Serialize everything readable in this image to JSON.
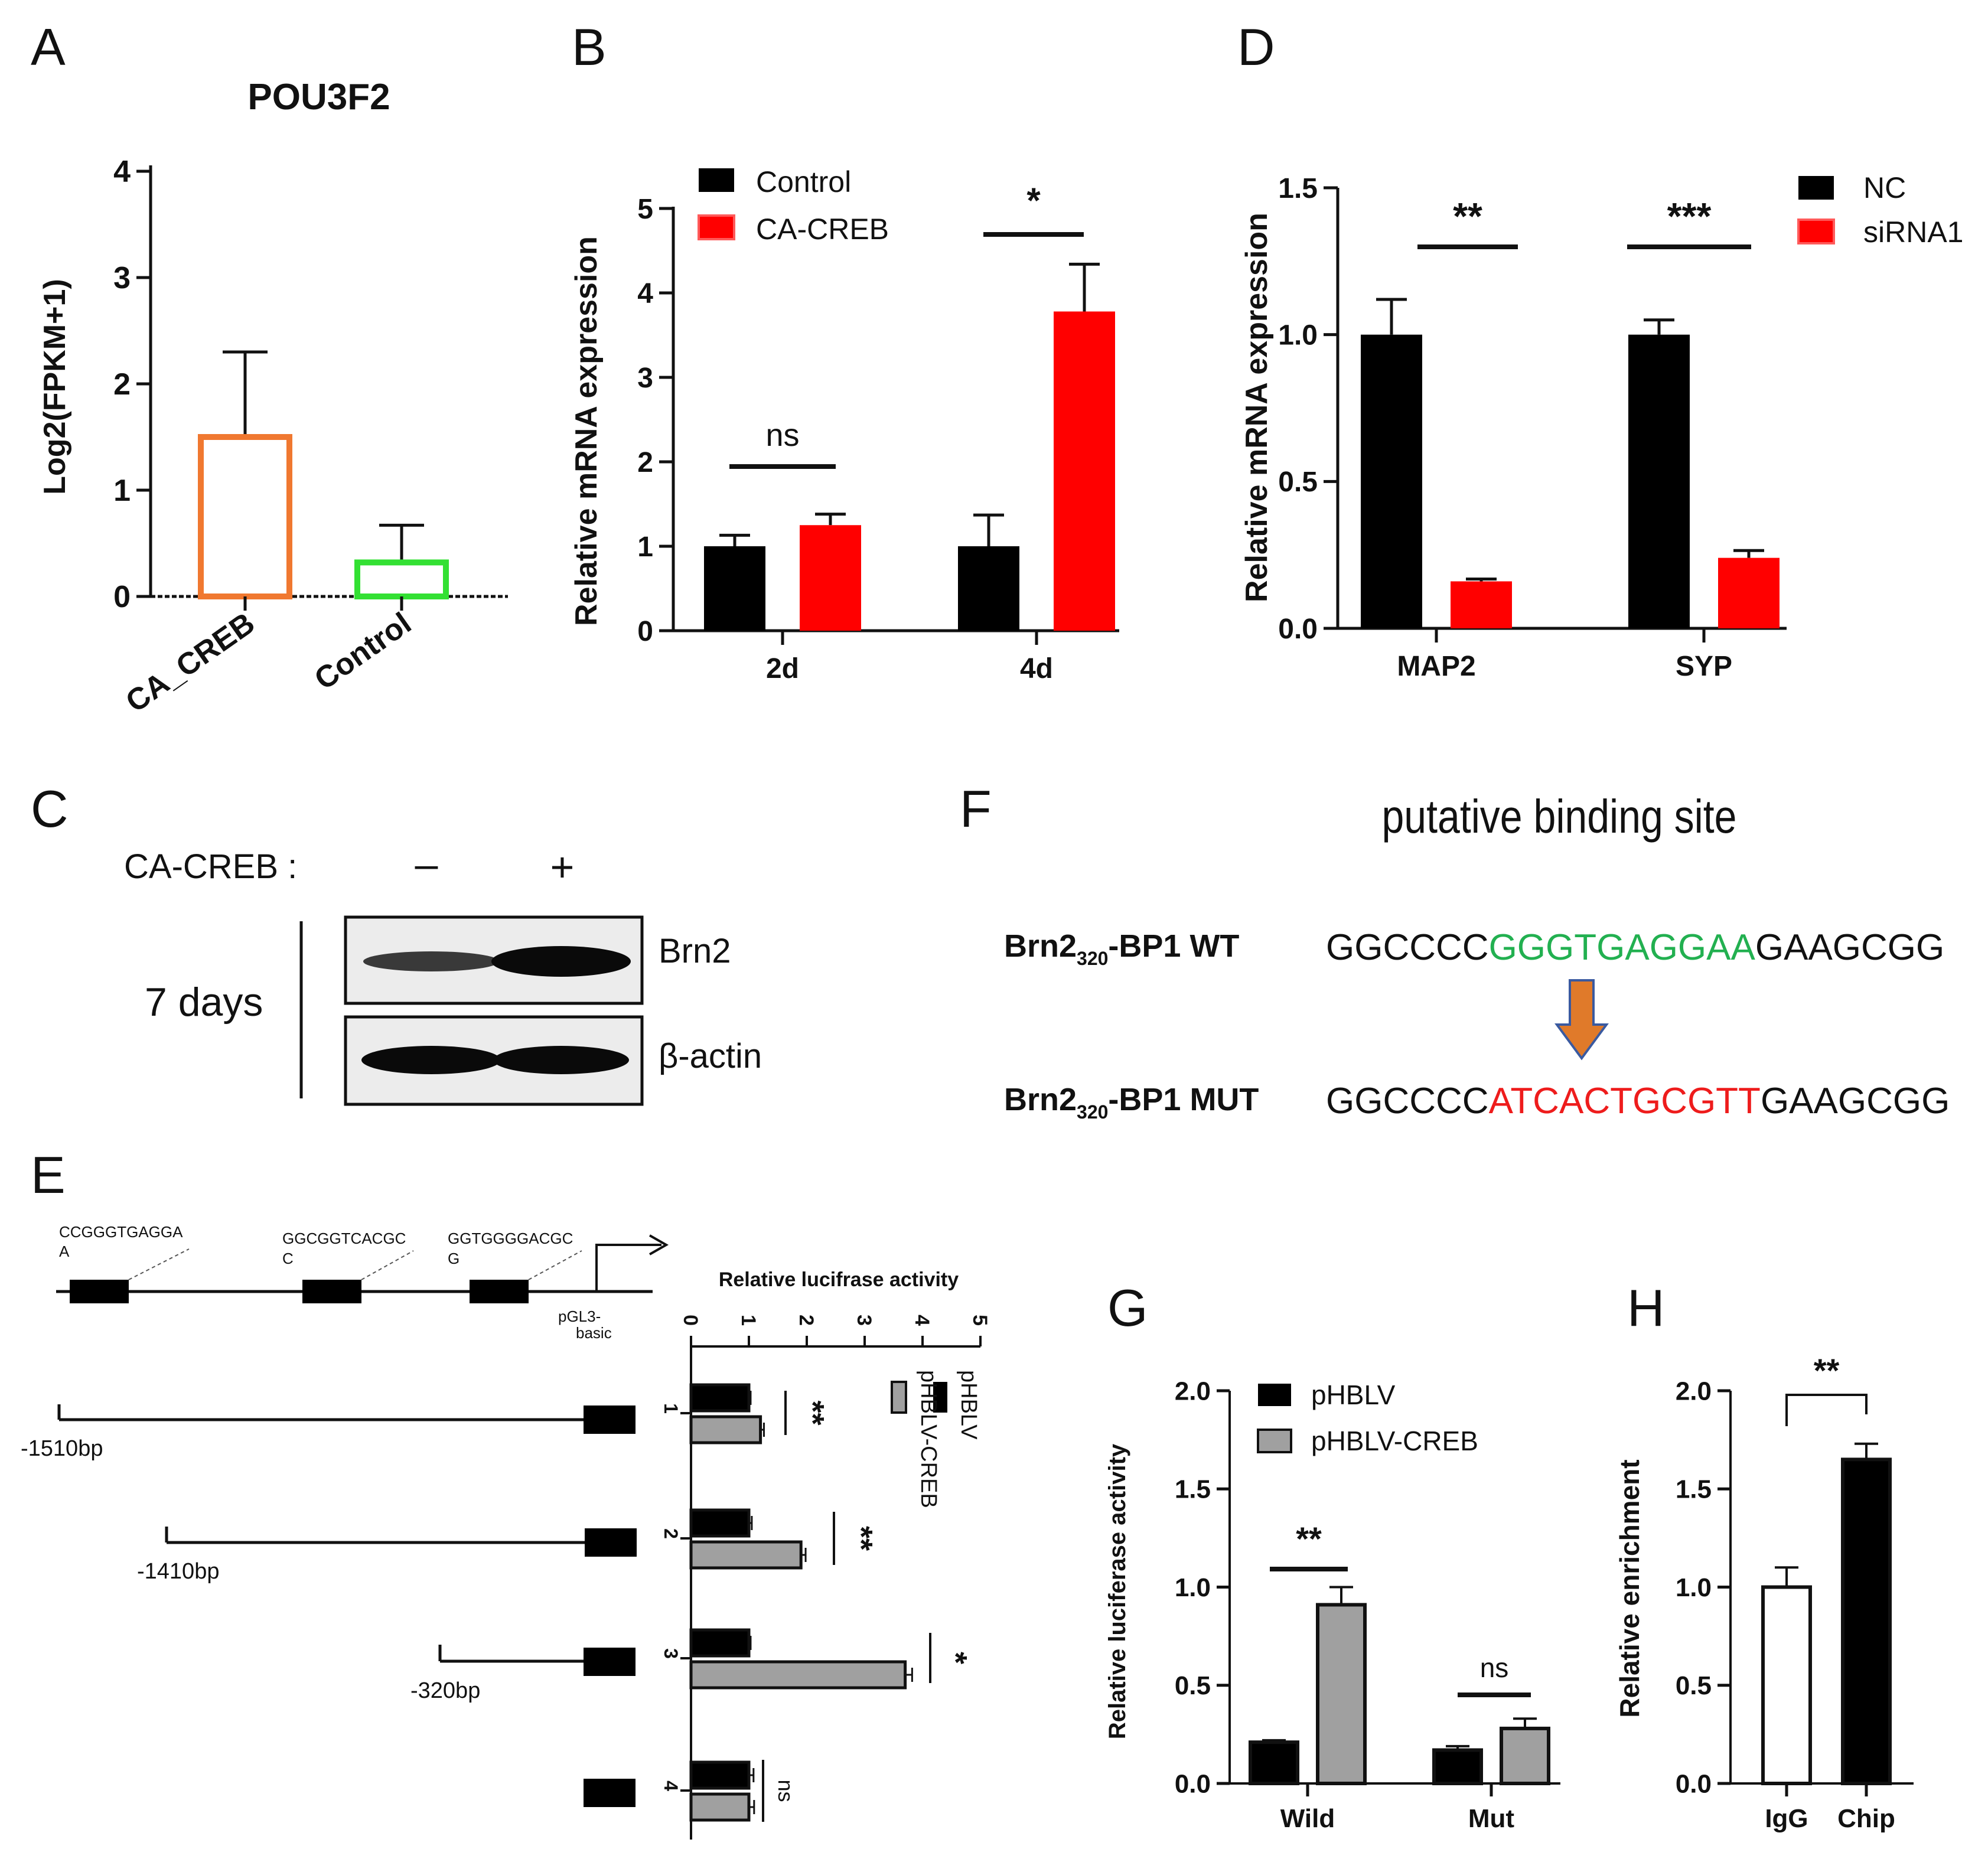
{
  "panels": {
    "A": "A",
    "B": "B",
    "C": "C",
    "D": "D",
    "E": "E",
    "F": "F",
    "G": "G",
    "H": "H"
  },
  "chart_data": [
    {
      "panel": "A",
      "type": "bar",
      "title": "POU3F2",
      "categories": [
        "CA_CREB",
        "Control"
      ],
      "values": [
        1.5,
        0.32
      ],
      "errors": [
        0.8,
        0.35
      ],
      "ylabel": "Log2(FPKM+1)",
      "ylim": [
        0,
        4
      ],
      "yticks": [
        "0",
        "1",
        "2",
        "3",
        "4"
      ],
      "colors": [
        "#f07830",
        "#33e033"
      ]
    },
    {
      "panel": "B",
      "type": "bar",
      "categories": [
        "2d",
        "4d"
      ],
      "series": [
        {
          "name": "Control",
          "values": [
            1.0,
            1.0
          ],
          "errors": [
            0.13,
            0.37
          ]
        },
        {
          "name": "CA-CREB",
          "values": [
            1.25,
            3.78
          ],
          "errors": [
            0.13,
            0.56
          ]
        }
      ],
      "ylabel": "Relative mRNA expression",
      "ylim": [
        0,
        5
      ],
      "yticks": [
        "0",
        "1",
        "2",
        "3",
        "4",
        "5"
      ],
      "significance": [
        "ns",
        "*"
      ],
      "colors": [
        "#000000",
        "#ff0000"
      ]
    },
    {
      "panel": "D",
      "type": "bar",
      "categories": [
        "MAP2",
        "SYP"
      ],
      "series": [
        {
          "name": "NC",
          "values": [
            1.0,
            1.0
          ],
          "errors": [
            0.12,
            0.05
          ]
        },
        {
          "name": "siRNA1",
          "values": [
            0.16,
            0.24
          ],
          "errors": [
            0.008,
            0.025
          ]
        }
      ],
      "ylabel": "Relative mRNA expression",
      "ylim": [
        0,
        1.5
      ],
      "yticks": [
        "0.0",
        "0.5",
        "1.0",
        "1.5"
      ],
      "significance": [
        "**",
        "***"
      ],
      "colors": [
        "#000000",
        "#ff0000"
      ]
    },
    {
      "panel": "E",
      "type": "bar",
      "orientation": "horizontal",
      "title": "Relative lucifrase activity",
      "categories": [
        "1",
        "2",
        "3",
        "4"
      ],
      "series": [
        {
          "name": "pHBLV",
          "values": [
            1.0,
            1.0,
            1.0,
            1.0
          ],
          "errors": [
            0.03,
            0.05,
            0.03,
            0.08
          ]
        },
        {
          "name": "pHBLV-CREB",
          "values": [
            1.2,
            1.9,
            3.7,
            1.0
          ],
          "errors": [
            0.06,
            0.08,
            0.12,
            0.09
          ]
        }
      ],
      "xlim": [
        0,
        5
      ],
      "xticks": [
        "0",
        "1",
        "2",
        "3",
        "4",
        "5"
      ],
      "significance": [
        "**",
        "**",
        "*",
        "ns"
      ],
      "colors": [
        "#000000",
        "#a0a0a0"
      ]
    },
    {
      "panel": "G",
      "type": "bar",
      "categories": [
        "Wild",
        "Mut"
      ],
      "series": [
        {
          "name": "pHBLV",
          "values": [
            0.21,
            0.17
          ],
          "errors": [
            0.01,
            0.02
          ]
        },
        {
          "name": "pHBLV-CREB",
          "values": [
            0.91,
            0.28
          ],
          "errors": [
            0.09,
            0.05
          ]
        }
      ],
      "ylabel": "Relative luciferase activity",
      "ylim": [
        0,
        2.0
      ],
      "yticks": [
        "0.0",
        "0.5",
        "1.0",
        "1.5",
        "2.0"
      ],
      "significance": [
        "**",
        "ns"
      ],
      "colors": [
        "#000000",
        "#a0a0a0"
      ]
    },
    {
      "panel": "H",
      "type": "bar",
      "categories": [
        "IgG",
        "Chip"
      ],
      "values": [
        1.0,
        1.65
      ],
      "errors": [
        0.1,
        0.08
      ],
      "ylabel": "Relative enrichment",
      "ylim": [
        0,
        2.0
      ],
      "yticks": [
        "0.0",
        "0.5",
        "1.0",
        "1.5",
        "2.0"
      ],
      "significance": [
        "**"
      ],
      "colors": [
        "#ffffff",
        "#000000"
      ]
    }
  ],
  "panelC": {
    "treatment_label": "CA-CREB :",
    "minus": "–",
    "plus": "+",
    "time_label": "7 days",
    "bands": [
      "Brn2",
      "β-actin"
    ]
  },
  "panelE_diagram": {
    "sites": [
      "CCGGGTGAGGA",
      "GGCGGTCACGC",
      "GGTGGGGACGC"
    ],
    "site_sub": [
      "A",
      "C",
      "G"
    ],
    "vector": [
      "pGL3-",
      "basic"
    ],
    "constructs": [
      "-1510bp",
      "-1410bp",
      "-320bp"
    ]
  },
  "panelF": {
    "title": "putative binding site",
    "wt_label": {
      "a": "Brn2",
      "sub": "320",
      "b": "-BP1  WT"
    },
    "mut_label": {
      "a": "Brn2",
      "sub": "320",
      "b": "-BP1  MUT"
    },
    "wt_seq": {
      "pre": "GGCCCC",
      "core": "GGGTGAGGAA",
      "post": "GAAGCGG"
    },
    "mut_seq": {
      "pre": "GGCCCC",
      "core": "ATCACTGCGTT",
      "post": "GAAGCGG"
    },
    "colors": {
      "wt": "#22b050",
      "mut": "#ee1c1c",
      "arrow": "#e07a2a",
      "arrow_edge": "#3a5aa0"
    }
  }
}
